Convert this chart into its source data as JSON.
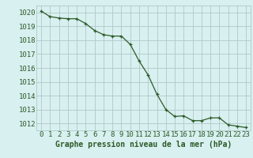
{
  "x": [
    0,
    1,
    2,
    3,
    4,
    5,
    6,
    7,
    8,
    9,
    10,
    11,
    12,
    13,
    14,
    15,
    16,
    17,
    18,
    19,
    20,
    21,
    22,
    23
  ],
  "y": [
    1020.1,
    1019.7,
    1019.6,
    1019.55,
    1019.55,
    1019.2,
    1018.7,
    1018.4,
    1018.3,
    1018.3,
    1017.7,
    1016.5,
    1015.5,
    1014.1,
    1013.0,
    1012.5,
    1012.55,
    1012.2,
    1012.2,
    1012.4,
    1012.4,
    1011.9,
    1011.8,
    1011.7
  ],
  "line_color": "#2d5a27",
  "marker": "+",
  "bg_color": "#d8f0f0",
  "grid_color": "#b0c8c8",
  "xlabel": "Graphe pression niveau de la mer (hPa)",
  "ylabel_ticks": [
    1012,
    1013,
    1014,
    1015,
    1016,
    1017,
    1018,
    1019,
    1020
  ],
  "ylim": [
    1011.5,
    1020.5
  ],
  "xlim": [
    -0.5,
    23.5
  ],
  "tick_color": "#2d5a27",
  "label_color": "#2d5a27",
  "xlabel_fontsize": 7,
  "tick_fontsize": 6.5
}
